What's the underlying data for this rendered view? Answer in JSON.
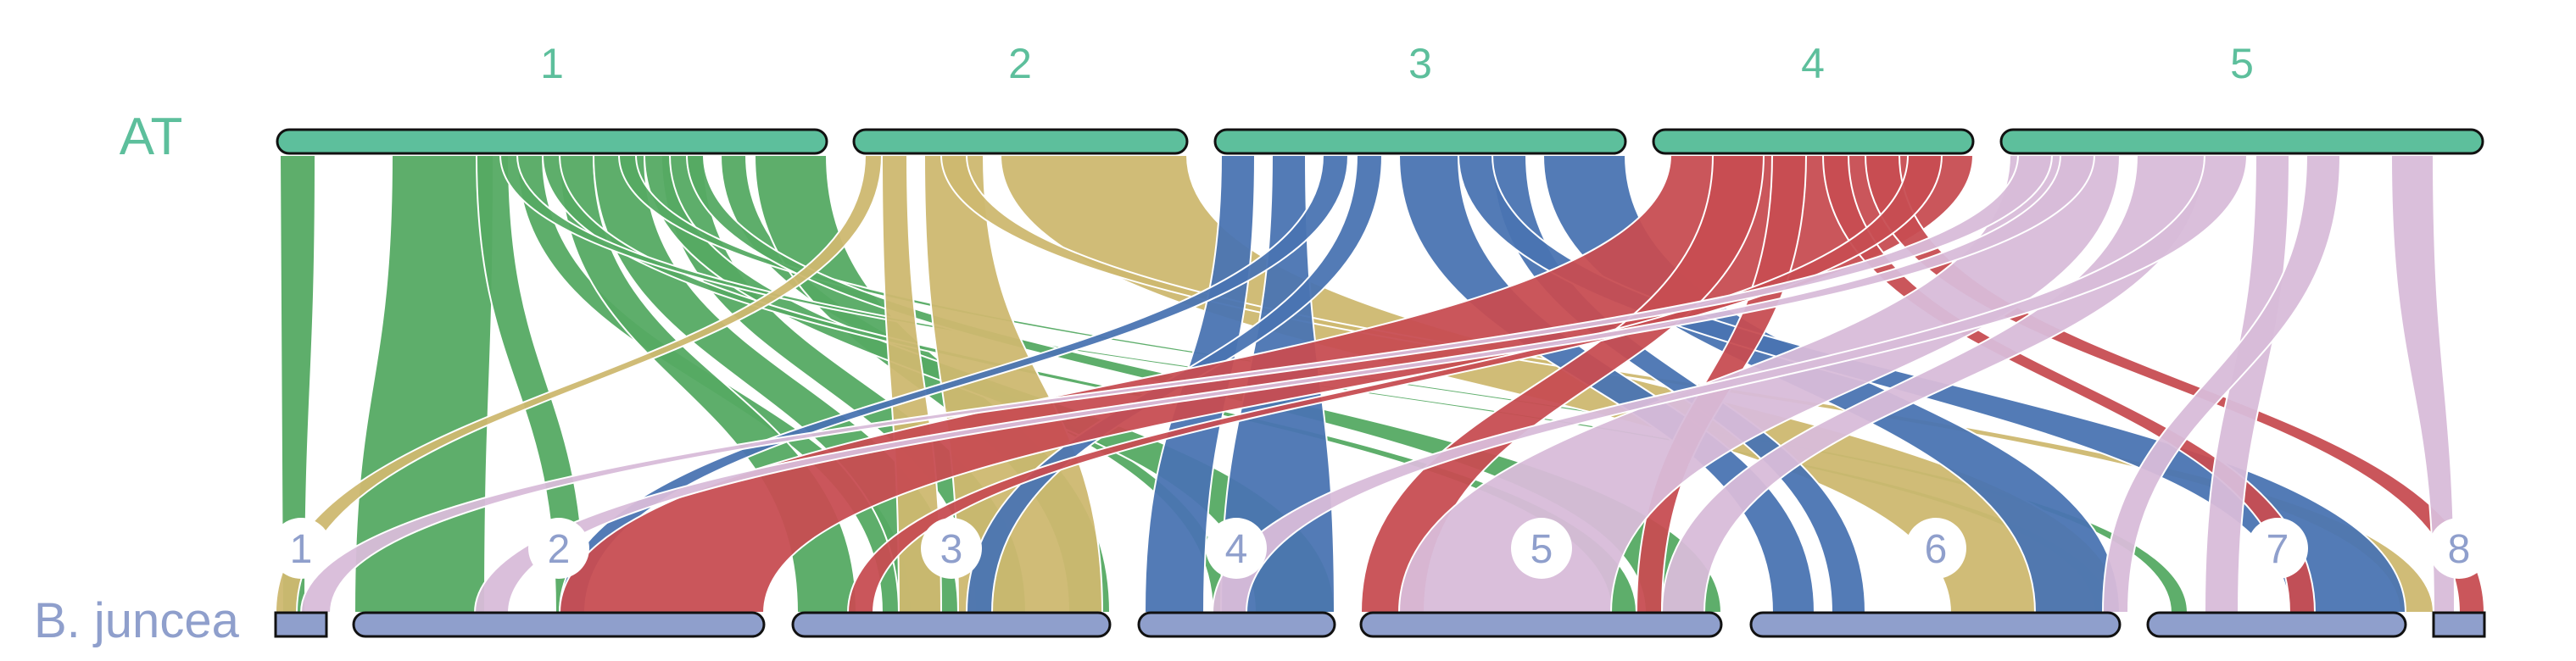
{
  "genomes": {
    "top": {
      "name": "AT",
      "color": "#5dbf9c",
      "chromosomes": [
        {
          "label": "1"
        },
        {
          "label": "2"
        },
        {
          "label": "3"
        },
        {
          "label": "4"
        },
        {
          "label": "5"
        }
      ]
    },
    "bottom": {
      "name": "B. juncea",
      "color": "#8f9fcc",
      "chromosomes": [
        {
          "label": "1"
        },
        {
          "label": "2"
        },
        {
          "label": "3"
        },
        {
          "label": "4"
        },
        {
          "label": "5"
        },
        {
          "label": "6"
        },
        {
          "label": "7"
        },
        {
          "label": "8"
        }
      ]
    }
  },
  "colors": {
    "chr1": "#55aa63",
    "chr2": "#cdb870",
    "chr3": "#4a74b2",
    "chr4": "#c74d52",
    "chr5": "#d8bcd9"
  }
}
